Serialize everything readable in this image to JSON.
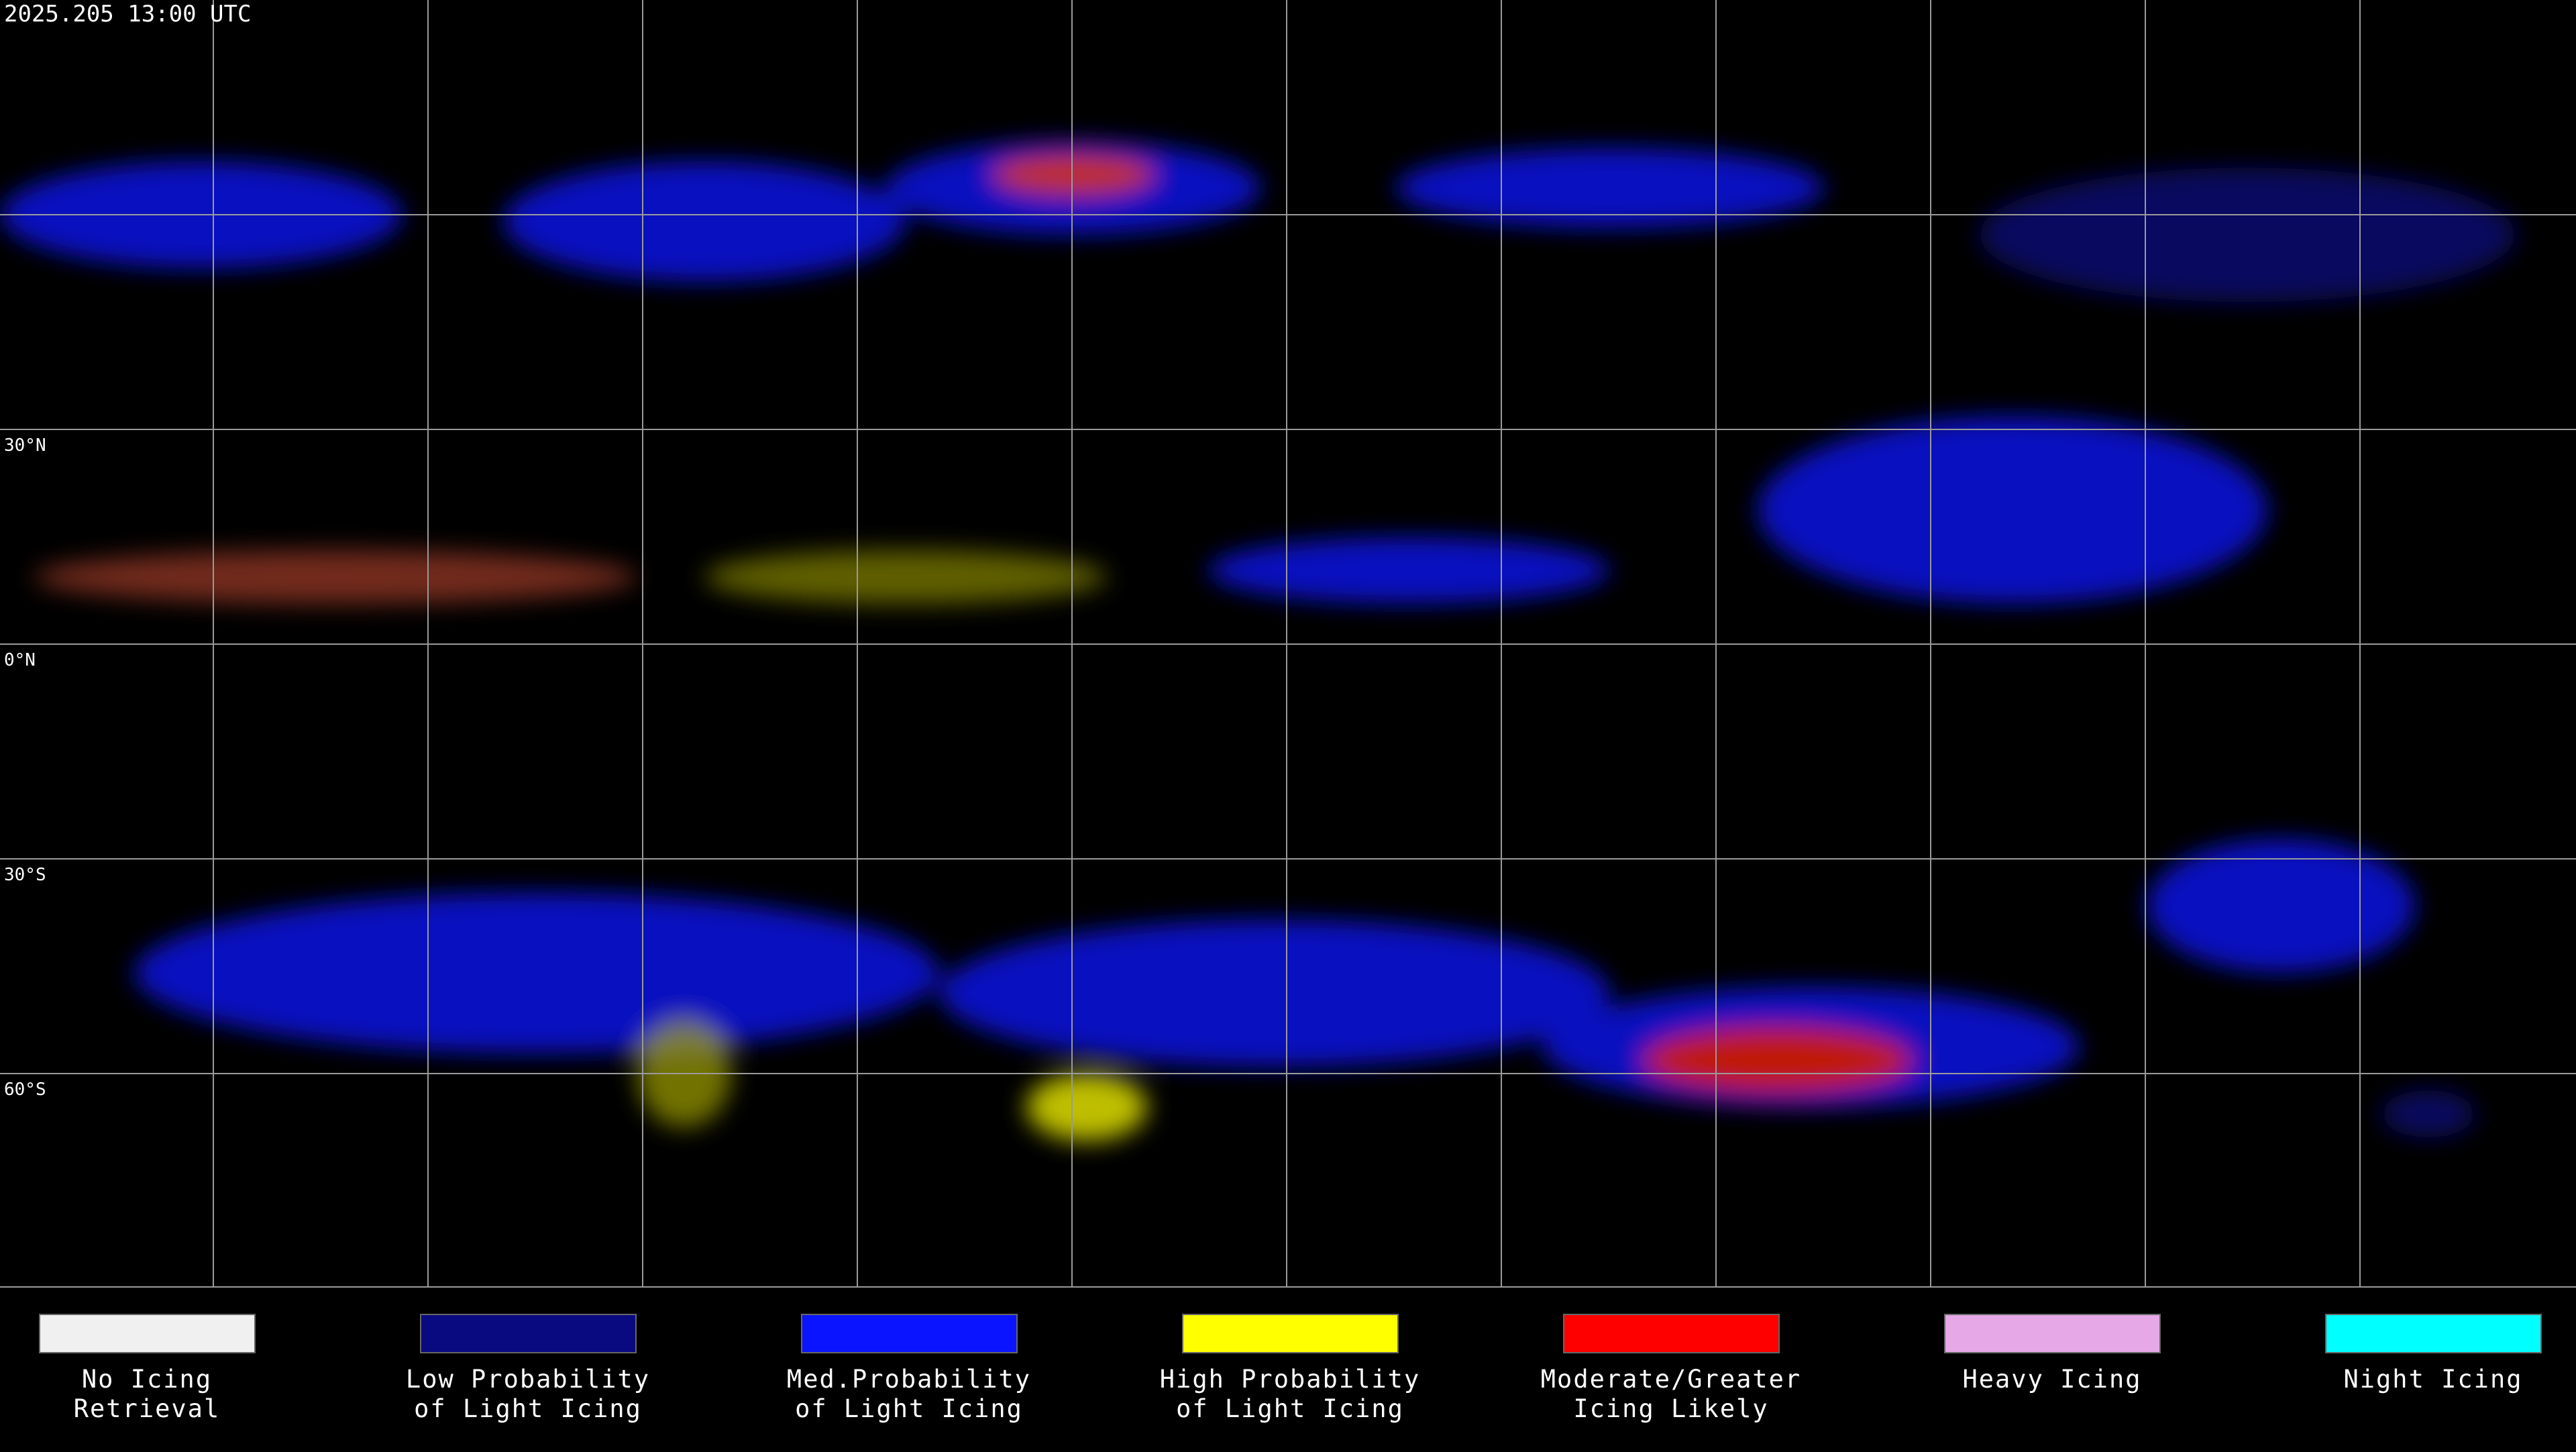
{
  "header": {
    "timestamp": "2025.205 13:00 UTC"
  },
  "map": {
    "latitude_labels": [
      "30°N",
      "0°N",
      "30°S",
      "60°S"
    ]
  },
  "legend": {
    "items": [
      {
        "label_lines": [
          "No Icing",
          "Retrieval"
        ],
        "color": "#f0f0f0"
      },
      {
        "label_lines": [
          "Low Probability",
          "of Light Icing"
        ],
        "color": "#0a0a80"
      },
      {
        "label_lines": [
          "Med.Probability",
          "of Light Icing"
        ],
        "color": "#0a14ff"
      },
      {
        "label_lines": [
          "High Probability",
          "of Light Icing"
        ],
        "color": "#ffff00"
      },
      {
        "label_lines": [
          "Moderate/Greater",
          "Icing Likely"
        ],
        "color": "#ff0000"
      },
      {
        "label_lines": [
          "Heavy Icing"
        ],
        "color": "#e6a8e6"
      },
      {
        "label_lines": [
          "Night Icing"
        ],
        "color": "#00ffff"
      }
    ]
  }
}
